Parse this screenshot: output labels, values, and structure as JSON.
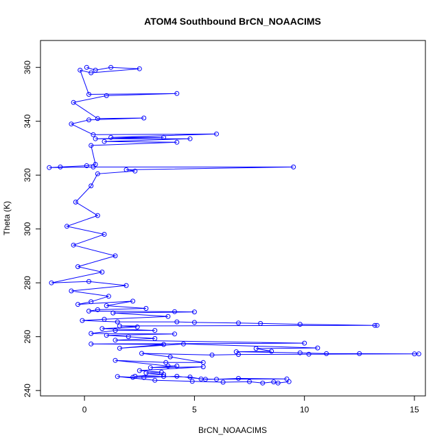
{
  "chart_data": {
    "type": "scatter",
    "title": "ATOM4 Southbound BrCN_NOAACIMS",
    "xlabel": "BrCN_NOAACIMS",
    "ylabel": "Theta (K)",
    "xlim": [
      -2,
      15.5
    ],
    "ylim": [
      238,
      370
    ],
    "x_ticks": [
      0,
      5,
      10,
      15
    ],
    "y_ticks": [
      240,
      260,
      280,
      300,
      320,
      340,
      360
    ],
    "grid": false,
    "legend": "none",
    "marker": "open-circle",
    "connected": true,
    "color": "#0000ff",
    "series": [
      {
        "points": [
          [
            0.1,
            360
          ],
          [
            0.5,
            359
          ],
          [
            1.2,
            360
          ],
          [
            2.5,
            359.5
          ],
          [
            0.3,
            358
          ],
          [
            -0.2,
            359
          ],
          [
            0.2,
            350
          ],
          [
            4.2,
            350.3
          ],
          [
            1.0,
            349.5
          ],
          [
            -0.5,
            347
          ],
          [
            0.6,
            341
          ],
          [
            2.7,
            341.2
          ],
          [
            0.2,
            340.5
          ],
          [
            -0.6,
            339
          ],
          [
            0.4,
            335
          ],
          [
            6.0,
            335.3
          ],
          [
            1.2,
            334
          ],
          [
            3.6,
            334
          ],
          [
            0.5,
            333.5
          ],
          [
            4.8,
            333.5
          ],
          [
            0.9,
            332.5
          ],
          [
            4.2,
            332.2
          ],
          [
            0.3,
            331
          ],
          [
            0.5,
            324
          ],
          [
            0.1,
            323.5
          ],
          [
            -1.1,
            323
          ],
          [
            -1.6,
            322.8
          ],
          [
            0.4,
            323
          ],
          [
            9.5,
            323
          ],
          [
            1.9,
            322
          ],
          [
            2.3,
            321.5
          ],
          [
            0.6,
            320.5
          ],
          [
            0.3,
            316
          ],
          [
            -0.4,
            310
          ],
          [
            0.6,
            305
          ],
          [
            -0.8,
            301
          ],
          [
            0.9,
            298
          ],
          [
            -0.5,
            294
          ],
          [
            1.4,
            290
          ],
          [
            -0.3,
            286
          ],
          [
            0.8,
            284
          ],
          [
            -1.5,
            280
          ],
          [
            0.2,
            280.5
          ],
          [
            1.9,
            279
          ],
          [
            -0.6,
            277
          ],
          [
            1.1,
            275
          ],
          [
            0.3,
            273
          ],
          [
            -0.3,
            272
          ],
          [
            2.2,
            273.2
          ],
          [
            1.0,
            271.5
          ],
          [
            2.8,
            270.5
          ],
          [
            0.6,
            270
          ],
          [
            0.2,
            269.5
          ],
          [
            4.1,
            269.3
          ],
          [
            5.0,
            269.2
          ],
          [
            1.3,
            268.8
          ],
          [
            3.8,
            267.5
          ],
          [
            0.9,
            266.5
          ],
          [
            -0.1,
            266
          ],
          [
            1.5,
            265.5
          ],
          [
            4.2,
            265.5
          ],
          [
            5.0,
            265.3
          ],
          [
            7.0,
            265.1
          ],
          [
            8.0,
            264.9
          ],
          [
            9.8,
            264.6
          ],
          [
            13.2,
            264.2
          ],
          [
            13.3,
            264.2
          ],
          [
            1.6,
            264
          ],
          [
            2.4,
            263.6
          ],
          [
            0.8,
            263
          ],
          [
            3.2,
            262.3
          ],
          [
            1.4,
            262.3
          ],
          [
            0.3,
            261.2
          ],
          [
            4.1,
            261
          ],
          [
            1.0,
            260.5
          ],
          [
            2.0,
            260
          ],
          [
            3.2,
            259.3
          ],
          [
            1.4,
            258.7
          ],
          [
            10.0,
            257.6
          ],
          [
            0.3,
            257.3
          ],
          [
            3.6,
            257.1
          ],
          [
            1.6,
            255.7
          ],
          [
            4.5,
            257.3
          ],
          [
            10.6,
            255.8
          ],
          [
            7.8,
            255.6
          ],
          [
            8.5,
            254.6
          ],
          [
            6.9,
            254.4
          ],
          [
            9.8,
            254
          ],
          [
            11.0,
            253.7
          ],
          [
            12.5,
            253.7
          ],
          [
            15.0,
            253.6
          ],
          [
            15.2,
            253.6
          ],
          [
            10.2,
            253.5
          ],
          [
            7.0,
            253.4
          ],
          [
            5.8,
            253.2
          ],
          [
            2.6,
            253.8
          ],
          [
            3.9,
            252.5
          ],
          [
            5.4,
            250.4
          ],
          [
            3.7,
            250.4
          ],
          [
            1.4,
            251.2
          ],
          [
            3.8,
            249.1
          ],
          [
            4.2,
            249.1
          ],
          [
            3.0,
            248.5
          ],
          [
            5.4,
            248.8
          ],
          [
            2.5,
            247.4
          ],
          [
            3.5,
            246.8
          ],
          [
            2.8,
            246.5
          ],
          [
            3.6,
            246
          ],
          [
            2.3,
            245.3
          ],
          [
            3.6,
            245.2
          ],
          [
            4.8,
            245
          ],
          [
            5.3,
            244.3
          ],
          [
            6.0,
            244.2
          ],
          [
            7.0,
            244.5
          ],
          [
            9.2,
            244.3
          ],
          [
            5.5,
            244.2
          ],
          [
            4.2,
            245.3
          ],
          [
            2.7,
            244.8
          ],
          [
            2.2,
            244.9
          ],
          [
            1.5,
            245.2
          ],
          [
            3.2,
            243.8
          ],
          [
            4.9,
            243.4
          ],
          [
            6.3,
            243.1
          ],
          [
            7.5,
            243.3
          ],
          [
            8.1,
            242.8
          ],
          [
            8.6,
            243.2
          ],
          [
            8.8,
            242.8
          ],
          [
            9.3,
            243.3
          ]
        ]
      }
    ]
  }
}
